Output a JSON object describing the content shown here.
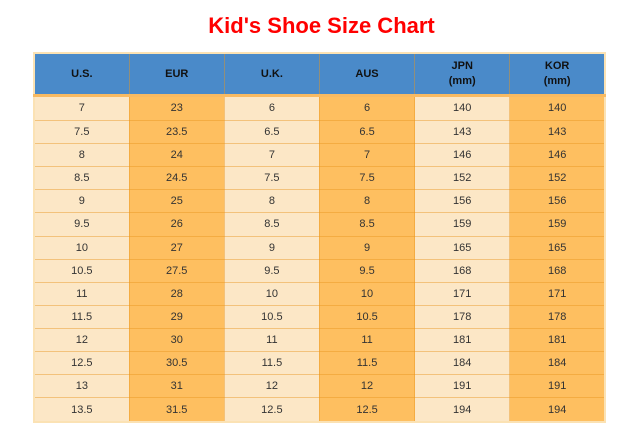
{
  "title": "Kid's Shoe Size Chart",
  "colors": {
    "title": "#FF0000",
    "header_bg": "#4A8AC9",
    "header_text": "#111111",
    "light_cell": "#FCE7C6",
    "orange_cell": "#FEBF60",
    "grid_line": "rgba(232,148,32,0.45)",
    "header_underline": "#F8BA62",
    "outer_border": "#FBE2B4",
    "cell_text": "#333333"
  },
  "chart_data": {
    "type": "table",
    "title": "Kid's Shoe Size Chart",
    "columns": [
      {
        "key": "us",
        "label": "U.S."
      },
      {
        "key": "eur",
        "label": "EUR"
      },
      {
        "key": "uk",
        "label": "U.K."
      },
      {
        "key": "aus",
        "label": "AUS"
      },
      {
        "key": "jpn",
        "label": "JPN",
        "sublabel": "(mm)"
      },
      {
        "key": "kor",
        "label": "KOR",
        "sublabel": "(mm)"
      }
    ],
    "rows": [
      [
        "7",
        "23",
        "6",
        "6",
        "140",
        "140"
      ],
      [
        "7.5",
        "23.5",
        "6.5",
        "6.5",
        "143",
        "143"
      ],
      [
        "8",
        "24",
        "7",
        "7",
        "146",
        "146"
      ],
      [
        "8.5",
        "24.5",
        "7.5",
        "7.5",
        "152",
        "152"
      ],
      [
        "9",
        "25",
        "8",
        "8",
        "156",
        "156"
      ],
      [
        "9.5",
        "26",
        "8.5",
        "8.5",
        "159",
        "159"
      ],
      [
        "10",
        "27",
        "9",
        "9",
        "165",
        "165"
      ],
      [
        "10.5",
        "27.5",
        "9.5",
        "9.5",
        "168",
        "168"
      ],
      [
        "11",
        "28",
        "10",
        "10",
        "171",
        "171"
      ],
      [
        "11.5",
        "29",
        "10.5",
        "10.5",
        "178",
        "178"
      ],
      [
        "12",
        "30",
        "11",
        "11",
        "181",
        "181"
      ],
      [
        "12.5",
        "30.5",
        "11.5",
        "11.5",
        "184",
        "184"
      ],
      [
        "13",
        "31",
        "12",
        "12",
        "191",
        "191"
      ],
      [
        "13.5",
        "31.5",
        "12.5",
        "12.5",
        "194",
        "194"
      ]
    ]
  }
}
